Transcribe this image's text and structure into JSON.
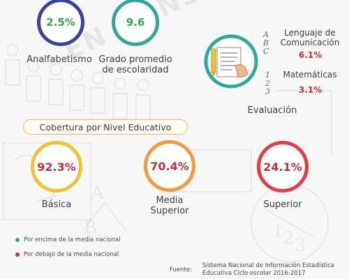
{
  "watermark": "EN CONSTRUCCIÓN",
  "top_stats": {
    "analfabetismo": {
      "value": "2.5%",
      "label": "Analfabetismo",
      "color": "#2fa84f",
      "ring": "#3b3f9e"
    },
    "escolaridad": {
      "value": "9.6",
      "label_line1": "Grado promedio",
      "label_line2": "de escolaridad",
      "color": "#2fa84f",
      "ring": "#2fa89a"
    }
  },
  "evaluacion": {
    "title": "Evaluación",
    "lenguaje_label_line1": "Lenguaje de",
    "lenguaje_label_line2": "Comunicación",
    "lenguaje_value": "6.1%",
    "matematicas_label": "Matemáticas",
    "matematicas_value": "3.1%",
    "value_color": "#c0303e",
    "icon_letters": [
      "A",
      "B",
      "C"
    ],
    "icon_numbers": [
      "1",
      "2",
      "3"
    ]
  },
  "cobertura": {
    "title": "Cobertura por Nivel Educativo",
    "basica": {
      "value": "92.3%",
      "label": "Básica",
      "color": "#c0303e",
      "ring": "#f0c230"
    },
    "media_superior": {
      "value": "70.4%",
      "label_line1": "Media",
      "label_line2": "Superior",
      "color": "#c0303e",
      "ring": "#f09a3b"
    },
    "superior": {
      "value": "24.1%",
      "label": "Superior",
      "color": "#c0303e",
      "ring": "#e8394a"
    }
  },
  "legend": {
    "above": {
      "label": "Por encima de la media nacional",
      "color": "#2fa84f"
    },
    "below": {
      "label": "Por debajo de la media nacional",
      "color": "#c0303e"
    }
  },
  "source": {
    "label": "Fuente:",
    "line1": "Sistema Nacional de Información Estadística",
    "line2": "Educativa Ciclo escolar 2016-2017"
  }
}
